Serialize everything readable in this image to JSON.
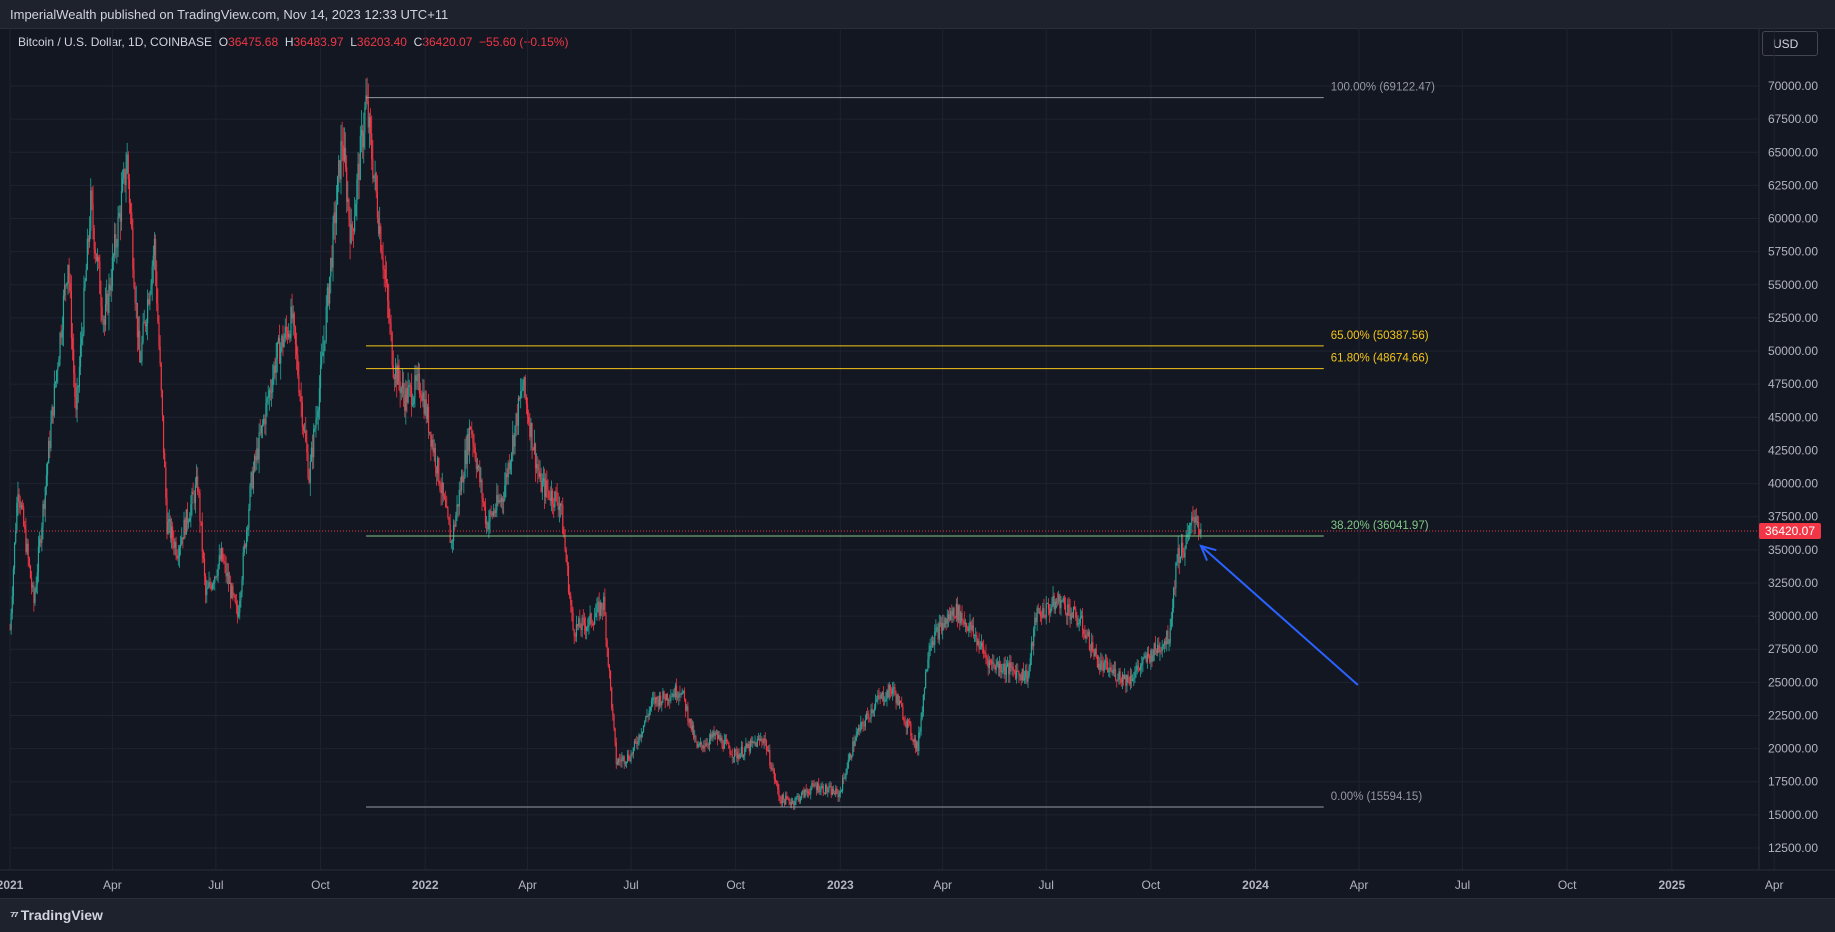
{
  "header": {
    "publisher": "ImperialWealth published on TradingView.com, Nov 14, 2023 12:33 UTC+11"
  },
  "symbol": {
    "name": "Bitcoin / U.S. Dollar, 1D, COINBASE",
    "open_label": "O",
    "open": "36475.68",
    "high_label": "H",
    "high": "36483.97",
    "low_label": "L",
    "low": "36203.40",
    "close_label": "C",
    "close": "36420.07",
    "change": "−55.60 (−0.15%)"
  },
  "currency_button": "USD",
  "footer": {
    "brand": "TradingView"
  },
  "colors": {
    "up": "#26a69a",
    "down": "#f23645",
    "fib_gold": "#f5c518",
    "fib_grey": "#9598a1",
    "fib_green": "#81c784",
    "arrow": "#2962ff",
    "price_tag": "#f23645"
  },
  "chart_data": {
    "type": "candlestick",
    "symbol": "BTCUSD",
    "interval": "1D",
    "x_range": [
      "2021-01-01",
      "2025-06-01"
    ],
    "ylim": [
      11000,
      72500
    ],
    "y_ticks": [
      "70000.00",
      "67500.00",
      "65000.00",
      "62500.00",
      "60000.00",
      "57500.00",
      "55000.00",
      "52500.00",
      "50000.00",
      "47500.00",
      "45000.00",
      "42500.00",
      "40000.00",
      "37500.00",
      "35000.00",
      "32500.00",
      "30000.00",
      "27500.00",
      "25000.00",
      "22500.00",
      "20000.00",
      "17500.00",
      "15000.00",
      "12500.00"
    ],
    "x_ticks": [
      {
        "label": "2021",
        "date": "2021-01-01",
        "bold": true
      },
      {
        "label": "Apr",
        "date": "2021-04-01"
      },
      {
        "label": "Jul",
        "date": "2021-07-01"
      },
      {
        "label": "Oct",
        "date": "2021-10-01"
      },
      {
        "label": "2022",
        "date": "2022-01-01",
        "bold": true
      },
      {
        "label": "Apr",
        "date": "2022-04-01"
      },
      {
        "label": "Jul",
        "date": "2022-07-01"
      },
      {
        "label": "Oct",
        "date": "2022-10-01"
      },
      {
        "label": "2023",
        "date": "2023-01-01",
        "bold": true
      },
      {
        "label": "Apr",
        "date": "2023-04-01"
      },
      {
        "label": "Jul",
        "date": "2023-07-01"
      },
      {
        "label": "Oct",
        "date": "2023-10-01"
      },
      {
        "label": "2024",
        "date": "2024-01-01",
        "bold": true
      },
      {
        "label": "Apr",
        "date": "2024-04-01"
      },
      {
        "label": "Jul",
        "date": "2024-07-01"
      },
      {
        "label": "Oct",
        "date": "2024-10-01"
      },
      {
        "label": "2025",
        "date": "2025-01-01",
        "bold": true
      },
      {
        "label": "Apr",
        "date": "2025-04-01"
      }
    ],
    "price_path": [
      [
        "2021-01-01",
        29000
      ],
      [
        "2021-01-08",
        40000
      ],
      [
        "2021-01-22",
        31000
      ],
      [
        "2021-02-08",
        46000
      ],
      [
        "2021-02-21",
        57000
      ],
      [
        "2021-02-28",
        45000
      ],
      [
        "2021-03-13",
        61000
      ],
      [
        "2021-03-25",
        52000
      ],
      [
        "2021-04-14",
        64500
      ],
      [
        "2021-04-25",
        49000
      ],
      [
        "2021-05-08",
        58000
      ],
      [
        "2021-05-19",
        37000
      ],
      [
        "2021-05-28",
        35000
      ],
      [
        "2021-06-15",
        40000
      ],
      [
        "2021-06-22",
        31500
      ],
      [
        "2021-07-06",
        34500
      ],
      [
        "2021-07-20",
        30000
      ],
      [
        "2021-08-01",
        40000
      ],
      [
        "2021-08-23",
        49500
      ],
      [
        "2021-09-06",
        52500
      ],
      [
        "2021-09-21",
        40500
      ],
      [
        "2021-10-01",
        48000
      ],
      [
        "2021-10-20",
        66000
      ],
      [
        "2021-10-28",
        58500
      ],
      [
        "2021-11-10",
        68800
      ],
      [
        "2021-11-25",
        57000
      ],
      [
        "2021-12-04",
        49000
      ],
      [
        "2021-12-14",
        46500
      ],
      [
        "2021-12-28",
        47500
      ],
      [
        "2022-01-10",
        42000
      ],
      [
        "2022-01-24",
        35500
      ],
      [
        "2022-02-10",
        44500
      ],
      [
        "2022-02-24",
        37000
      ],
      [
        "2022-03-10",
        39000
      ],
      [
        "2022-03-28",
        47500
      ],
      [
        "2022-04-12",
        40000
      ],
      [
        "2022-04-30",
        38500
      ],
      [
        "2022-05-11",
        29000
      ],
      [
        "2022-05-25",
        29500
      ],
      [
        "2022-06-07",
        31000
      ],
      [
        "2022-06-18",
        19000
      ],
      [
        "2022-07-01",
        19500
      ],
      [
        "2022-07-20",
        23500
      ],
      [
        "2022-08-14",
        24500
      ],
      [
        "2022-08-28",
        20000
      ],
      [
        "2022-09-13",
        21000
      ],
      [
        "2022-10-01",
        19500
      ],
      [
        "2022-10-26",
        20800
      ],
      [
        "2022-11-09",
        16200
      ],
      [
        "2022-11-20",
        16000
      ],
      [
        "2022-12-10",
        17200
      ],
      [
        "2022-12-31",
        16550
      ],
      [
        "2023-01-14",
        20800
      ],
      [
        "2023-02-01",
        23500
      ],
      [
        "2023-02-16",
        24500
      ],
      [
        "2023-03-10",
        20000
      ],
      [
        "2023-03-20",
        28000
      ],
      [
        "2023-04-12",
        30500
      ],
      [
        "2023-04-26",
        29000
      ],
      [
        "2023-05-12",
        26500
      ],
      [
        "2023-06-15",
        25500
      ],
      [
        "2023-06-22",
        30000
      ],
      [
        "2023-07-13",
        31200
      ],
      [
        "2023-08-01",
        29400
      ],
      [
        "2023-08-17",
        26300
      ],
      [
        "2023-09-11",
        25200
      ],
      [
        "2023-09-30",
        27000
      ],
      [
        "2023-10-17",
        28500
      ],
      [
        "2023-10-24",
        34500
      ],
      [
        "2023-11-01",
        35400
      ],
      [
        "2023-11-09",
        37800
      ],
      [
        "2023-11-14",
        36420
      ]
    ],
    "last_price": "36420.07",
    "fib_levels": [
      {
        "label": "100.00% (69122.47)",
        "price": 69122.47,
        "color": "#9598a1"
      },
      {
        "label": "65.00% (50387.56)",
        "price": 50387.56,
        "color": "#f5c518"
      },
      {
        "label": "61.80% (48674.66)",
        "price": 48674.66,
        "color": "#f5c518"
      },
      {
        "label": "38.20% (36041.97)",
        "price": 36041.97,
        "color": "#81c784"
      },
      {
        "label": "0.00% (15594.15)",
        "price": 15594.15,
        "color": "#9598a1"
      }
    ],
    "fib_start": "2021-11-10",
    "fib_end": "2024-03-01",
    "arrow": {
      "from": [
        "2024-03-31",
        24800
      ],
      "to": [
        "2023-11-14",
        35300
      ]
    },
    "grid": true
  }
}
